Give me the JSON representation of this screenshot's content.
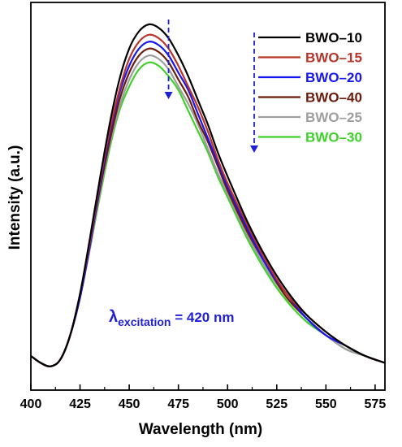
{
  "chart_data": {
    "type": "line",
    "xlabel": "Wavelength (nm)",
    "ylabel": "Intensity (a.u.)",
    "xlim": [
      400,
      580
    ],
    "ylim": [
      0,
      1.1
    ],
    "x_ticks": [
      400,
      425,
      450,
      475,
      500,
      525,
      550,
      575
    ],
    "y_ticks_shown": false,
    "grid": false,
    "legend_position": "top-right",
    "annotation": {
      "lambda": "λ",
      "subscript": "excitation",
      "value": " = 420 nm",
      "color": "#1f1fd6"
    },
    "trend_arrows": {
      "color": "#1f1fd6",
      "style": "dashed",
      "direction": "down"
    },
    "x": [
      400,
      405,
      410,
      415,
      420,
      425,
      430,
      435,
      440,
      445,
      450,
      455,
      460,
      465,
      470,
      475,
      480,
      485,
      490,
      495,
      500,
      510,
      520,
      530,
      540,
      550,
      560,
      570,
      580
    ],
    "series": [
      {
        "name": "BWO–10",
        "color": "#000000",
        "peak": 1.0,
        "values": [
          0.04,
          0.02,
          0.01,
          0.03,
          0.1,
          0.22,
          0.38,
          0.55,
          0.71,
          0.84,
          0.93,
          0.98,
          1.0,
          0.99,
          0.96,
          0.91,
          0.85,
          0.78,
          0.71,
          0.63,
          0.56,
          0.43,
          0.32,
          0.23,
          0.16,
          0.11,
          0.07,
          0.04,
          0.02
        ]
      },
      {
        "name": "BWO–15",
        "color": "#b8342a",
        "peak": 0.97,
        "values": [
          0.04,
          0.02,
          0.01,
          0.03,
          0.1,
          0.22,
          0.37,
          0.54,
          0.69,
          0.81,
          0.9,
          0.95,
          0.97,
          0.96,
          0.93,
          0.88,
          0.82,
          0.76,
          0.69,
          0.61,
          0.54,
          0.42,
          0.31,
          0.22,
          0.16,
          0.11,
          0.07,
          0.04,
          0.02
        ]
      },
      {
        "name": "BWO–20",
        "color": "#1616f0",
        "peak": 0.95,
        "values": [
          0.04,
          0.02,
          0.01,
          0.03,
          0.1,
          0.21,
          0.36,
          0.53,
          0.68,
          0.8,
          0.88,
          0.93,
          0.95,
          0.94,
          0.91,
          0.86,
          0.81,
          0.74,
          0.67,
          0.6,
          0.53,
          0.41,
          0.3,
          0.22,
          0.15,
          0.1,
          0.07,
          0.04,
          0.02
        ]
      },
      {
        "name": "BWO–40",
        "color": "#6b1a0c",
        "peak": 0.93,
        "values": [
          0.04,
          0.02,
          0.01,
          0.03,
          0.1,
          0.21,
          0.36,
          0.52,
          0.66,
          0.78,
          0.86,
          0.91,
          0.93,
          0.92,
          0.89,
          0.84,
          0.79,
          0.72,
          0.66,
          0.59,
          0.52,
          0.4,
          0.3,
          0.21,
          0.15,
          0.1,
          0.07,
          0.04,
          0.02
        ]
      },
      {
        "name": "BWO–25",
        "color": "#9e9e9e",
        "peak": 0.91,
        "values": [
          0.04,
          0.02,
          0.01,
          0.03,
          0.1,
          0.21,
          0.35,
          0.51,
          0.65,
          0.76,
          0.84,
          0.89,
          0.91,
          0.9,
          0.87,
          0.82,
          0.77,
          0.71,
          0.64,
          0.57,
          0.51,
          0.39,
          0.29,
          0.21,
          0.15,
          0.1,
          0.06,
          0.04,
          0.02
        ]
      },
      {
        "name": "BWO–30",
        "color": "#3fd12a",
        "peak": 0.89,
        "values": [
          0.04,
          0.02,
          0.01,
          0.03,
          0.1,
          0.21,
          0.35,
          0.5,
          0.64,
          0.75,
          0.82,
          0.87,
          0.89,
          0.88,
          0.85,
          0.81,
          0.75,
          0.69,
          0.63,
          0.56,
          0.5,
          0.38,
          0.28,
          0.2,
          0.14,
          0.1,
          0.06,
          0.04,
          0.02
        ]
      }
    ]
  }
}
